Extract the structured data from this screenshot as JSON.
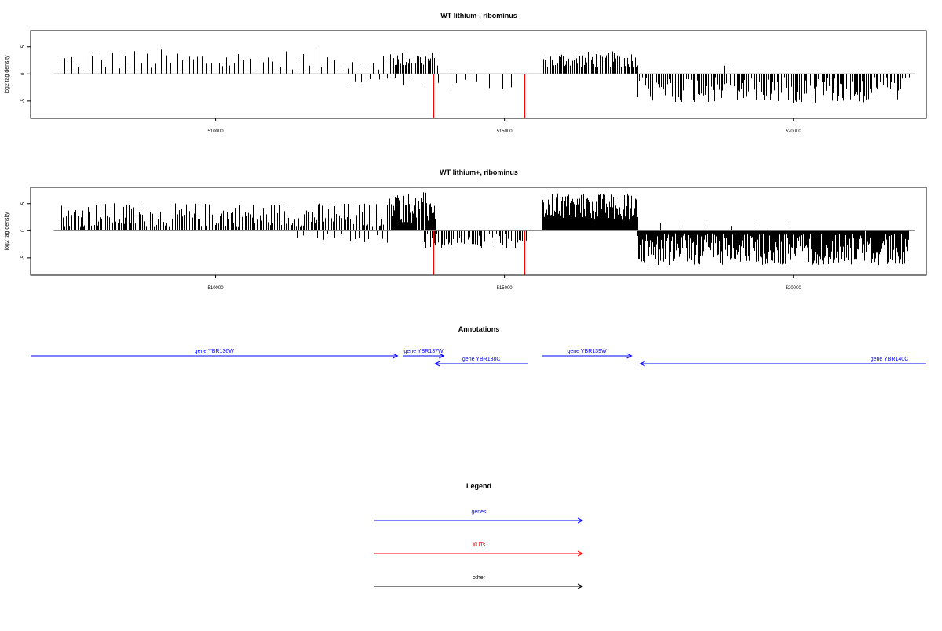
{
  "chart_data": [
    {
      "type": "bar",
      "title": "WT lithium-, ribominus",
      "ylabel": "log2 tag density",
      "xlabel": "",
      "xlim": [
        506800,
        522300
      ],
      "ylim": [
        -8.2,
        8.0
      ],
      "xticks": [
        510000,
        515000,
        520000
      ],
      "xtick_labels": [
        "510000",
        "515000",
        "520000"
      ],
      "yticks": [
        5,
        0,
        -5
      ],
      "ytick_labels": [
        "5",
        "0",
        "-5"
      ],
      "baseline": {
        "from": 507200,
        "to": 522100,
        "color": "#808080"
      },
      "colors": {
        "signal": "#000000",
        "xut": "#ff0000",
        "baseline": "#808080"
      },
      "series": [
        {
          "segments": [
            {
              "from": 507300,
              "to": 513700,
              "step": 95,
              "min": 0.8,
              "max": 4.6,
              "sign": 1
            },
            {
              "from": 512300,
              "to": 513700,
              "step": 150,
              "min": 0.6,
              "max": 2.2,
              "sign": -1
            },
            {
              "from": 513000,
              "to": 513850,
              "step": 28,
              "min": 1.5,
              "max": 4.2,
              "sign": 1
            },
            {
              "from": 513850,
              "to": 515200,
              "step": 160,
              "min": 0.8,
              "max": 3.6,
              "sign": -1
            },
            {
              "from": 515650,
              "to": 517300,
              "step": 22,
              "min": 1.2,
              "max": 4.2,
              "sign": 1
            },
            {
              "from": 517300,
              "to": 522000,
              "step": 26,
              "min": 0.6,
              "max": 5.4,
              "sign": -1
            },
            {
              "from": 518800,
              "to": 519000,
              "step": 200,
              "min": 1.4,
              "max": 1.6,
              "sign": 1
            }
          ],
          "xuts": [
            {
              "x": 513770,
              "y": -8.1
            },
            {
              "x": 515350,
              "y": -8.1
            }
          ]
        }
      ]
    },
    {
      "type": "bar",
      "title": "WT lithium+, ribominus",
      "ylabel": "log2 tag density",
      "xlabel": "",
      "xlim": [
        506800,
        522300
      ],
      "ylim": [
        -8.2,
        8.0
      ],
      "xticks": [
        510000,
        515000,
        520000
      ],
      "xtick_labels": [
        "510000",
        "515000",
        "520000"
      ],
      "yticks": [
        5,
        0,
        -5
      ],
      "ytick_labels": [
        "5",
        "0",
        "-5"
      ],
      "baseline": {
        "from": 507200,
        "to": 522100,
        "color": "#808080"
      },
      "colors": {
        "signal": "#000000",
        "xut": "#ff0000",
        "baseline": "#808080"
      },
      "series": [
        {
          "segments": [
            {
              "from": 507300,
              "to": 513100,
              "step": 28,
              "min": 0.8,
              "max": 5.2,
              "sign": 1
            },
            {
              "from": 511400,
              "to": 513000,
              "step": 110,
              "min": 0.5,
              "max": 2.4,
              "sign": -1
            },
            {
              "from": 513000,
              "to": 513800,
              "step": 12,
              "min": 1.5,
              "max": 7.2,
              "sign": 1
            },
            {
              "from": 513600,
              "to": 515400,
              "step": 30,
              "min": 0.5,
              "max": 3.2,
              "sign": -1
            },
            {
              "from": 515650,
              "to": 517300,
              "step": 9,
              "min": 2.0,
              "max": 7.0,
              "sign": 1
            },
            {
              "from": 517300,
              "to": 522000,
              "step": 10,
              "min": 0.5,
              "max": 6.4,
              "sign": -1
            },
            {
              "from": 517700,
              "to": 520000,
              "step": 320,
              "min": 0.6,
              "max": 2.6,
              "sign": 1
            }
          ],
          "xuts": [
            {
              "x": 513770,
              "y": -8.1
            },
            {
              "x": 515350,
              "y": -8.1
            }
          ]
        }
      ]
    }
  ],
  "annotations": {
    "title": "Annotations",
    "genes": [
      {
        "label": "gene YBR136W",
        "strand": "+",
        "start": 506800,
        "end": 513150,
        "row": 0
      },
      {
        "label": "gene YBR137W",
        "strand": "+",
        "start": 513250,
        "end": 513950,
        "row": 0
      },
      {
        "label": "gene YBR138C",
        "strand": "-",
        "start": 513800,
        "end": 515400,
        "row": 1
      },
      {
        "label": "gene YBR139W",
        "strand": "+",
        "start": 515650,
        "end": 517200,
        "row": 0
      },
      {
        "label": "gene YBR140C",
        "strand": "-",
        "start": 517350,
        "end": 522300,
        "row": 1
      }
    ]
  },
  "legend": {
    "title": "Legend",
    "items": [
      {
        "label": "genes",
        "color": "#0000ff"
      },
      {
        "label": "XUTs",
        "color": "#ff0000"
      },
      {
        "label": "other",
        "color": "#000000"
      }
    ]
  }
}
